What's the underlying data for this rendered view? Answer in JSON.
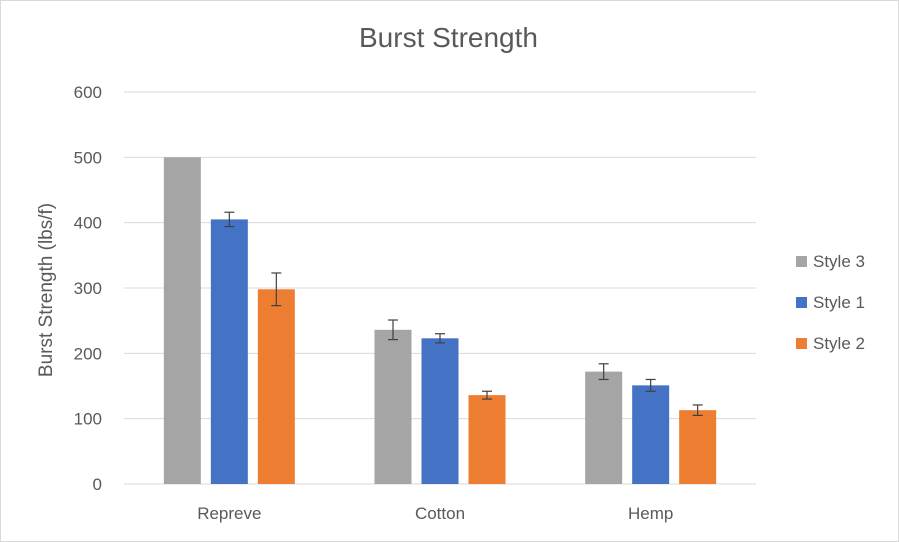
{
  "chart_data": {
    "type": "bar",
    "title": "Burst Strength",
    "xlabel": "",
    "ylabel": "Burst Strength (lbs/f)",
    "ylim": [
      0,
      600
    ],
    "yticks": [
      0,
      100,
      200,
      300,
      400,
      500,
      600
    ],
    "grid": true,
    "legend_position": "right",
    "categories": [
      "Repreve",
      "Cotton",
      "Hemp"
    ],
    "series": [
      {
        "name": "Style 3",
        "color": "#a5a5a5",
        "values": [
          500,
          236,
          172
        ],
        "errors": [
          0,
          15,
          12
        ]
      },
      {
        "name": "Style 1",
        "color": "#4472c4",
        "values": [
          405,
          223,
          151
        ],
        "errors": [
          11,
          7,
          9
        ]
      },
      {
        "name": "Style 2",
        "color": "#ed7d31",
        "values": [
          298,
          136,
          113
        ],
        "errors": [
          25,
          6,
          8
        ]
      }
    ]
  }
}
